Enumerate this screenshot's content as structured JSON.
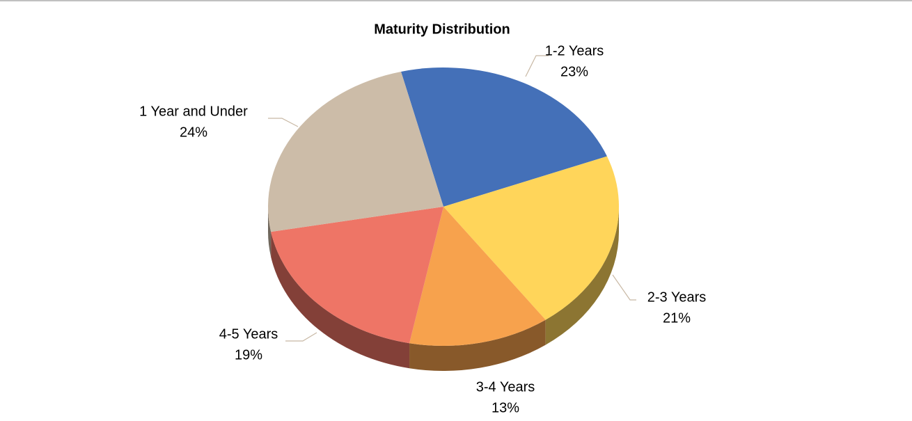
{
  "chart_data": {
    "type": "pie",
    "title": "Maturity Distribution",
    "categories": [
      "1-2 Years",
      "2-3 Years",
      "3-4 Years",
      "4-5 Years",
      "1 Year and Under"
    ],
    "values": [
      23,
      21,
      13,
      19,
      24
    ],
    "value_labels": [
      "23%",
      "21%",
      "13%",
      "19%",
      "24%"
    ],
    "colors": [
      "#4470b8",
      "#ffd55a",
      "#f7a24d",
      "#ee7566",
      "#ccbca8"
    ]
  }
}
